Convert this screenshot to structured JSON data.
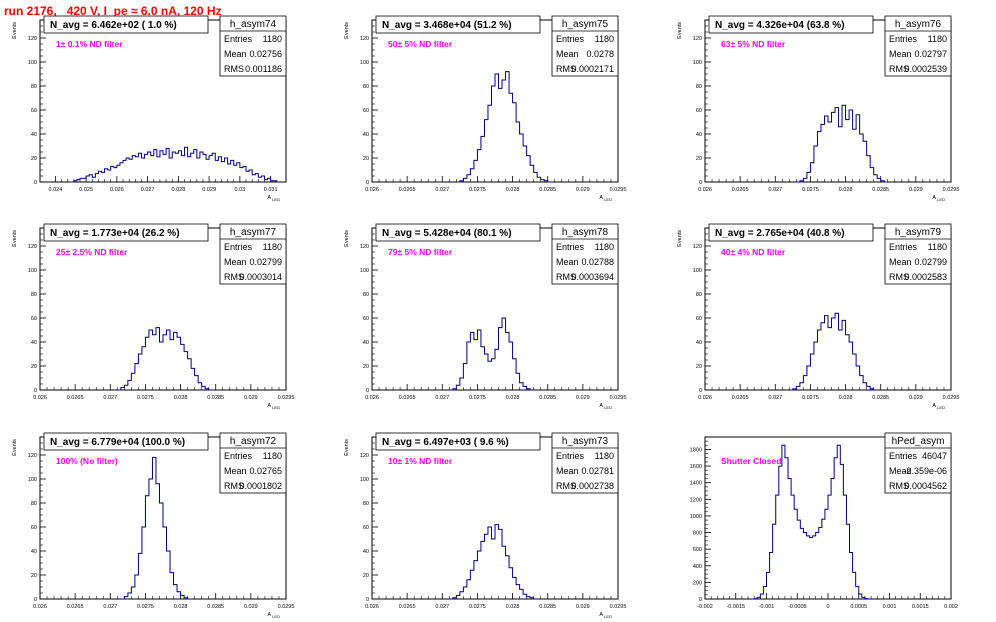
{
  "page": {
    "title": "run 2176,   420 V, I_pe ≈ 6.0 nA, 120 Hz",
    "title_color": "#ff0000",
    "annotation_color": "#ff00ff",
    "line_color": "#00007f"
  },
  "chart_data": [
    {
      "type": "histogram",
      "name": "h_asym74",
      "title": "N_avg = 6.462e+02 ( 1.0 %)",
      "annotation": "1± 0.1% ND filter",
      "stats": {
        "entries_label": "Entries",
        "entries": "1180",
        "mean_label": "Mean",
        "mean": "0.02756",
        "rms_label": "RMS",
        "rms": "0.001186"
      },
      "xlabel": "A_LED",
      "ylabel": "Events",
      "xlim": [
        0.0235,
        0.0315
      ],
      "ylim": [
        0,
        135
      ],
      "xticks": [
        0.024,
        0.025,
        0.026,
        0.027,
        0.028,
        0.029,
        0.03,
        0.031
      ],
      "xtick_labels": [
        "0.024",
        "0.025",
        "0.026",
        "0.027",
        "0.028",
        "0.029",
        "0.03",
        "0.031"
      ],
      "yticks": [
        0,
        20,
        40,
        60,
        80,
        100,
        120
      ],
      "ytick_labels": [
        "0",
        "20",
        "40",
        "60",
        "80",
        "100",
        "120"
      ],
      "bins": {
        "start": 0.0245,
        "width": 0.0001,
        "values": [
          0,
          1,
          2,
          3,
          3,
          5,
          6,
          4,
          7,
          9,
          8,
          11,
          10,
          13,
          12,
          14,
          16,
          18,
          20,
          19,
          22,
          21,
          24,
          20,
          23,
          25,
          22,
          27,
          21,
          26,
          23,
          28,
          20,
          25,
          24,
          26,
          22,
          29,
          21,
          24,
          27,
          20,
          25,
          23,
          19,
          22,
          24,
          18,
          21,
          17,
          20,
          15,
          18,
          14,
          16,
          12,
          13,
          9,
          10,
          6,
          7,
          4,
          5,
          2,
          3,
          1,
          1,
          0
        ]
      }
    },
    {
      "type": "histogram",
      "name": "h_asym75",
      "title": "N_avg = 3.468e+04 (51.2 %)",
      "annotation": "50± 5% ND filter",
      "stats": {
        "entries_label": "Entries",
        "entries": "1180",
        "mean_label": "Mean",
        "mean": "0.0278",
        "rms_label": "RMS",
        "rms": "0.0002171"
      },
      "xlabel": "A_LED",
      "ylabel": "Events",
      "xlim": [
        0.026,
        0.0295
      ],
      "ylim": [
        0,
        135
      ],
      "xticks": [
        0.026,
        0.0265,
        0.027,
        0.0275,
        0.028,
        0.0285,
        0.029,
        0.0295
      ],
      "xtick_labels": [
        "0.026",
        "0.0265",
        "0.027",
        "0.0275",
        "0.028",
        "0.0285",
        "0.029",
        "0.0295"
      ],
      "yticks": [
        0,
        20,
        40,
        60,
        80,
        100,
        120
      ],
      "ytick_labels": [
        "0",
        "20",
        "40",
        "60",
        "80",
        "100",
        "120"
      ],
      "bins": {
        "start": 0.0272,
        "width": 5e-05,
        "values": [
          0,
          1,
          3,
          6,
          11,
          18,
          27,
          38,
          52,
          64,
          80,
          90,
          78,
          85,
          92,
          74,
          66,
          50,
          40,
          30,
          22,
          14,
          8,
          4,
          2,
          1,
          0
        ]
      }
    },
    {
      "type": "histogram",
      "name": "h_asym76",
      "title": "N_avg = 4.326e+04 (63.8 %)",
      "annotation": "63± 5% ND filter",
      "stats": {
        "entries_label": "Entries",
        "entries": "1180",
        "mean_label": "Mean",
        "mean": "0.02797",
        "rms_label": "RMS",
        "rms": "0.0002539"
      },
      "xlabel": "A_LED",
      "ylabel": "Events",
      "xlim": [
        0.026,
        0.0295
      ],
      "ylim": [
        0,
        135
      ],
      "xticks": [
        0.026,
        0.0265,
        0.027,
        0.0275,
        0.028,
        0.0285,
        0.029,
        0.0295
      ],
      "xtick_labels": [
        "0.026",
        "0.0265",
        "0.027",
        "0.0275",
        "0.028",
        "0.0285",
        "0.029",
        "0.0295"
      ],
      "yticks": [
        0,
        20,
        40,
        60,
        80,
        100,
        120
      ],
      "ytick_labels": [
        "0",
        "20",
        "40",
        "60",
        "80",
        "100",
        "120"
      ],
      "bins": {
        "start": 0.0273,
        "width": 5e-05,
        "values": [
          0,
          1,
          3,
          8,
          16,
          30,
          42,
          48,
          55,
          50,
          58,
          62,
          46,
          64,
          52,
          60,
          44,
          56,
          40,
          34,
          22,
          12,
          6,
          3,
          1,
          0
        ]
      }
    },
    {
      "type": "histogram",
      "name": "h_asym77",
      "title": "N_avg = 1.773e+04 (26.2 %)",
      "annotation": "25± 2.5% ND filter",
      "stats": {
        "entries_label": "Entries",
        "entries": "1180",
        "mean_label": "Mean",
        "mean": "0.02799",
        "rms_label": "RMS",
        "rms": "0.0003014"
      },
      "xlabel": "A_LED",
      "ylabel": "Events",
      "xlim": [
        0.026,
        0.0295
      ],
      "ylim": [
        0,
        135
      ],
      "xticks": [
        0.026,
        0.0265,
        0.027,
        0.0275,
        0.028,
        0.0285,
        0.029,
        0.0295
      ],
      "xtick_labels": [
        "0.026",
        "0.0265",
        "0.027",
        "0.0275",
        "0.028",
        "0.0285",
        "0.029",
        "0.0295"
      ],
      "yticks": [
        0,
        20,
        40,
        60,
        80,
        100,
        120
      ],
      "ytick_labels": [
        "0",
        "20",
        "40",
        "60",
        "80",
        "100",
        "120"
      ],
      "bins": {
        "start": 0.0271,
        "width": 5e-05,
        "values": [
          0,
          2,
          4,
          8,
          14,
          22,
          30,
          36,
          44,
          50,
          46,
          52,
          40,
          46,
          50,
          42,
          48,
          44,
          38,
          32,
          26,
          18,
          12,
          6,
          3,
          1,
          0
        ]
      }
    },
    {
      "type": "histogram",
      "name": "h_asym78",
      "title": "N_avg = 5.428e+04 (80.1 %)",
      "annotation": "79± 5% ND filter",
      "stats": {
        "entries_label": "Entries",
        "entries": "1180",
        "mean_label": "Mean",
        "mean": "0.02788",
        "rms_label": "RMS",
        "rms": "0.0003694"
      },
      "xlabel": "A_LED",
      "ylabel": "Events",
      "xlim": [
        0.026,
        0.0295
      ],
      "ylim": [
        0,
        135
      ],
      "xticks": [
        0.026,
        0.0265,
        0.027,
        0.0275,
        0.028,
        0.0285,
        0.029,
        0.0295
      ],
      "xtick_labels": [
        "0.026",
        "0.0265",
        "0.027",
        "0.0275",
        "0.028",
        "0.0285",
        "0.029",
        "0.0295"
      ],
      "yticks": [
        0,
        20,
        40,
        60,
        80,
        100,
        120
      ],
      "ytick_labels": [
        "0",
        "20",
        "40",
        "60",
        "80",
        "100",
        "120"
      ],
      "bins": {
        "start": 0.0271,
        "width": 5e-05,
        "values": [
          0,
          1,
          4,
          10,
          22,
          40,
          48,
          42,
          50,
          36,
          30,
          24,
          26,
          34,
          52,
          60,
          48,
          40,
          26,
          14,
          6,
          3,
          1,
          0
        ]
      }
    },
    {
      "type": "histogram",
      "name": "h_asym79",
      "title": "N_avg = 2.765e+04 (40.8 %)",
      "annotation": "40± 4% ND filter",
      "stats": {
        "entries_label": "Entries",
        "entries": "1180",
        "mean_label": "Mean",
        "mean": "0.02799",
        "rms_label": "RMS",
        "rms": "0.0002583"
      },
      "xlabel": "A_LED",
      "ylabel": "Events",
      "xlim": [
        0.026,
        0.0295
      ],
      "ylim": [
        0,
        135
      ],
      "xticks": [
        0.026,
        0.0265,
        0.027,
        0.0275,
        0.028,
        0.0285,
        0.029,
        0.0295
      ],
      "xtick_labels": [
        "0.026",
        "0.0265",
        "0.027",
        "0.0275",
        "0.028",
        "0.0285",
        "0.029",
        "0.0295"
      ],
      "yticks": [
        0,
        20,
        40,
        60,
        80,
        100,
        120
      ],
      "ytick_labels": [
        "0",
        "20",
        "40",
        "60",
        "80",
        "100",
        "120"
      ],
      "bins": {
        "start": 0.0272,
        "width": 5e-05,
        "values": [
          0,
          1,
          3,
          6,
          12,
          20,
          30,
          40,
          50,
          56,
          62,
          52,
          60,
          64,
          50,
          58,
          46,
          40,
          30,
          20,
          12,
          6,
          3,
          1,
          0
        ]
      }
    },
    {
      "type": "histogram",
      "name": "h_asym72",
      "title": "N_avg = 6.779e+04 (100.0 %)",
      "annotation": "100% (No filter)",
      "stats": {
        "entries_label": "Entries",
        "entries": "1180",
        "mean_label": "Mean",
        "mean": "0.02765",
        "rms_label": "RMS",
        "rms": "0.0001802"
      },
      "xlabel": "A_LED",
      "ylabel": "Events",
      "xlim": [
        0.026,
        0.0295
      ],
      "ylim": [
        0,
        135
      ],
      "xticks": [
        0.026,
        0.0265,
        0.027,
        0.0275,
        0.028,
        0.0285,
        0.029,
        0.0295
      ],
      "xtick_labels": [
        "0.026",
        "0.0265",
        "0.027",
        "0.0275",
        "0.028",
        "0.0285",
        "0.029",
        "0.0295"
      ],
      "yticks": [
        0,
        20,
        40,
        60,
        80,
        100,
        120
      ],
      "ytick_labels": [
        "0",
        "20",
        "40",
        "60",
        "80",
        "100",
        "120"
      ],
      "bins": {
        "start": 0.02715,
        "width": 5e-05,
        "values": [
          0,
          2,
          5,
          10,
          20,
          38,
          60,
          86,
          100,
          118,
          96,
          80,
          60,
          40,
          22,
          12,
          6,
          3,
          1,
          0
        ]
      }
    },
    {
      "type": "histogram",
      "name": "h_asym73",
      "title": "N_avg = 6.497e+03 ( 9.6 %)",
      "annotation": "10± 1% ND filter",
      "stats": {
        "entries_label": "Entries",
        "entries": "1180",
        "mean_label": "Mean",
        "mean": "0.02781",
        "rms_label": "RMS",
        "rms": "0.0002738"
      },
      "xlabel": "A_LED",
      "ylabel": "Events",
      "xlim": [
        0.026,
        0.0295
      ],
      "ylim": [
        0,
        135
      ],
      "xticks": [
        0.026,
        0.0265,
        0.027,
        0.0275,
        0.028,
        0.0285,
        0.029,
        0.0295
      ],
      "xtick_labels": [
        "0.026",
        "0.0265",
        "0.027",
        "0.0275",
        "0.028",
        "0.0285",
        "0.029",
        "0.0295"
      ],
      "yticks": [
        0,
        20,
        40,
        60,
        80,
        100,
        120
      ],
      "ytick_labels": [
        "0",
        "20",
        "40",
        "60",
        "80",
        "100",
        "120"
      ],
      "bins": {
        "start": 0.0271,
        "width": 5e-05,
        "values": [
          0,
          1,
          3,
          6,
          10,
          16,
          24,
          32,
          40,
          48,
          54,
          60,
          50,
          62,
          58,
          44,
          36,
          26,
          18,
          12,
          8,
          4,
          2,
          1,
          0
        ]
      }
    },
    {
      "type": "histogram",
      "name": "hPed_asym",
      "title": "",
      "annotation": "Shutter Closed",
      "stats": {
        "entries_label": "Entries",
        "entries": "46047",
        "mean_label": "Mean",
        "mean": "-2.359e-06",
        "rms_label": "RMS",
        "rms": "0.0004562"
      },
      "xlabel": "",
      "ylabel": "",
      "xlim": [
        -0.002,
        0.002
      ],
      "ylim": [
        0,
        1950
      ],
      "xticks": [
        -0.002,
        -0.0015,
        -0.001,
        -0.0005,
        0,
        0.0005,
        0.001,
        0.0015,
        0.002
      ],
      "xtick_labels": [
        "-0.002",
        "-0.0015",
        "-0.001",
        "-0.0005",
        "0",
        "0.0005",
        "0.001",
        "0.0015",
        "0.002"
      ],
      "yticks": [
        0,
        200,
        400,
        600,
        800,
        1000,
        1200,
        1400,
        1600,
        1800
      ],
      "ytick_labels": [
        "0",
        "200",
        "400",
        "600",
        "800",
        "1000",
        "1200",
        "1400",
        "1600",
        "1800"
      ],
      "bins": {
        "start": -0.00125,
        "width": 5e-05,
        "values": [
          0,
          5,
          20,
          60,
          150,
          320,
          560,
          900,
          1250,
          1600,
          1850,
          1700,
          1450,
          1250,
          1080,
          950,
          850,
          800,
          760,
          740,
          760,
          800,
          860,
          960,
          1080,
          1250,
          1450,
          1700,
          1850,
          1620,
          1250,
          900,
          560,
          320,
          150,
          60,
          20,
          5,
          0
        ]
      }
    }
  ]
}
